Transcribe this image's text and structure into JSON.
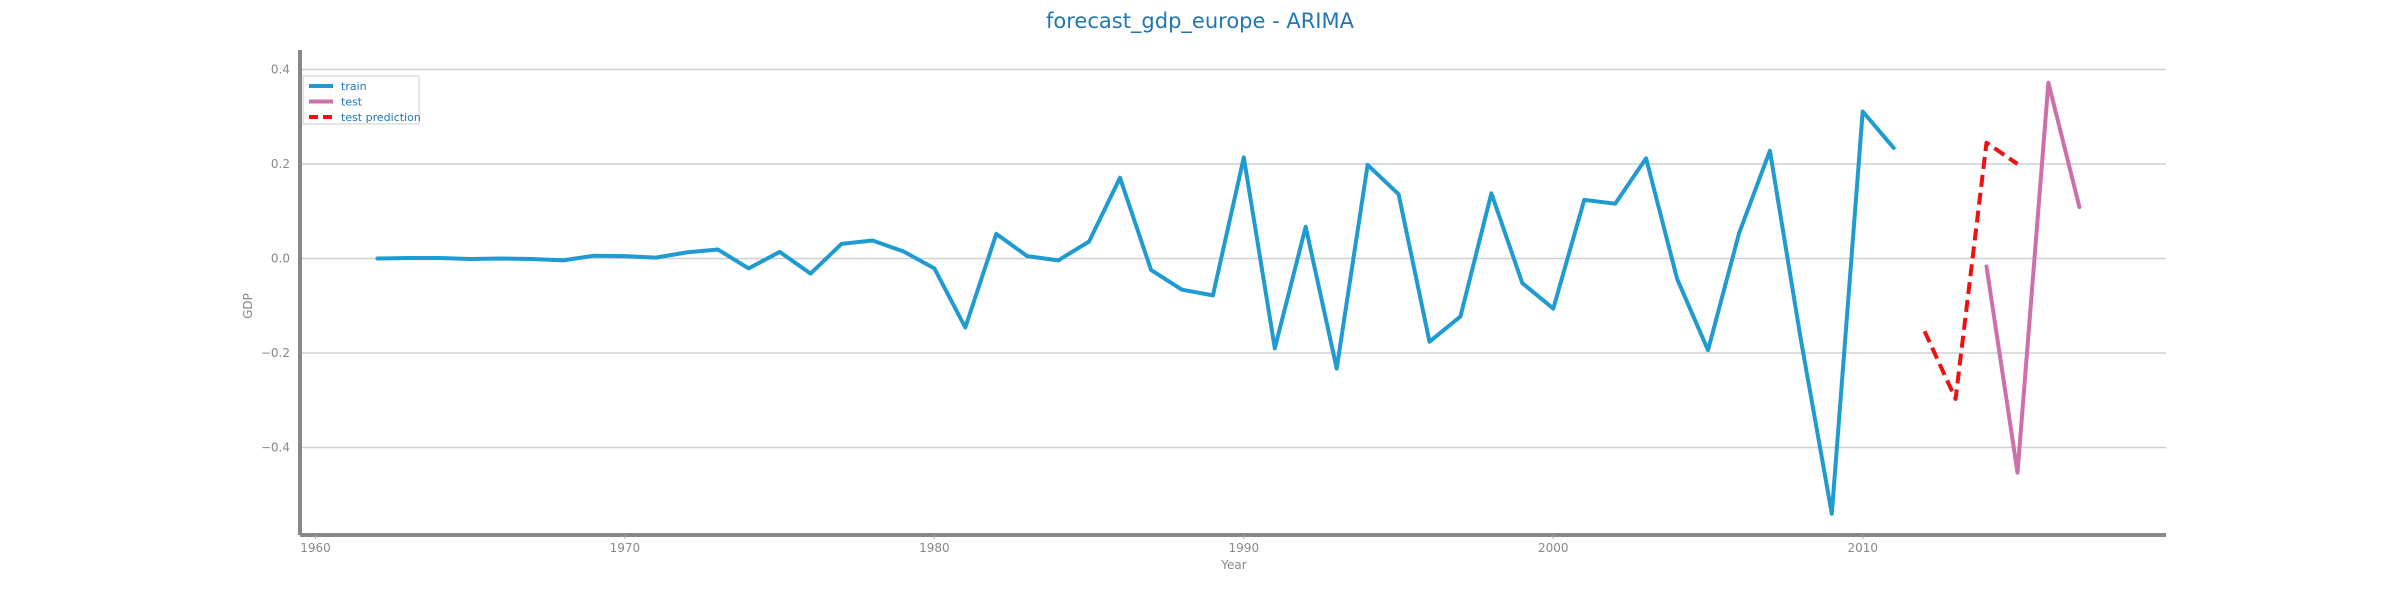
{
  "chart_data": {
    "type": "line",
    "title": "forecast_gdp_europe - ARIMA",
    "xlabel": "Year",
    "ylabel": "GDP",
    "xlim": [
      1959.5,
      2019.8
    ],
    "ylim": [
      -0.585,
      0.42
    ],
    "x_ticks": [
      1960,
      1970,
      1980,
      1990,
      2000,
      2010
    ],
    "y_ticks": [
      -0.4,
      -0.2,
      0.0,
      0.2,
      0.4
    ],
    "y_tick_labels": [
      "−0.4",
      "−0.2",
      "0.0",
      "0.2",
      "0.4"
    ],
    "grid": "horizontal",
    "legend_position": "top-left",
    "series": [
      {
        "name": "train",
        "color": "#1f9bd1",
        "style": "solid",
        "x": [
          1962,
          1963,
          1964,
          1965,
          1966,
          1967,
          1968,
          1969,
          1970,
          1971,
          1972,
          1973,
          1974,
          1975,
          1976,
          1977,
          1978,
          1979,
          1980,
          1981,
          1982,
          1983,
          1984,
          1985,
          1986,
          1987,
          1988,
          1989,
          1990,
          1991,
          1992,
          1993,
          1994,
          1995,
          1996,
          1997,
          1998,
          1999,
          2000,
          2001,
          2002,
          2003,
          2004,
          2005,
          2006,
          2007,
          2008,
          2009,
          2010,
          2011
        ],
        "y": [
          0.0,
          0.001,
          0.001,
          -0.001,
          0.0,
          -0.001,
          -0.004,
          0.006,
          0.005,
          0.002,
          0.013,
          0.019,
          -0.021,
          0.014,
          -0.032,
          0.031,
          0.038,
          0.015,
          -0.021,
          -0.146,
          0.052,
          0.005,
          -0.004,
          0.036,
          0.171,
          -0.024,
          -0.066,
          -0.078,
          0.214,
          -0.19,
          0.067,
          -0.233,
          0.198,
          0.136,
          -0.176,
          -0.123,
          0.138,
          -0.052,
          -0.106,
          0.124,
          0.116,
          0.212,
          -0.043,
          -0.194,
          0.053,
          0.228,
          -0.171,
          -0.54,
          0.311,
          0.234
        ]
      },
      {
        "name": "test",
        "color": "#cc6fab",
        "style": "solid",
        "x": [
          2014,
          2015,
          2016,
          2017
        ],
        "y": [
          -0.017,
          -0.453,
          0.372,
          0.109
        ]
      },
      {
        "name": "test prediction",
        "color": "#ee1111",
        "style": "dashed",
        "x": [
          2012,
          2013,
          2014,
          2015
        ],
        "y": [
          -0.154,
          -0.297,
          0.245,
          0.2
        ]
      }
    ]
  }
}
